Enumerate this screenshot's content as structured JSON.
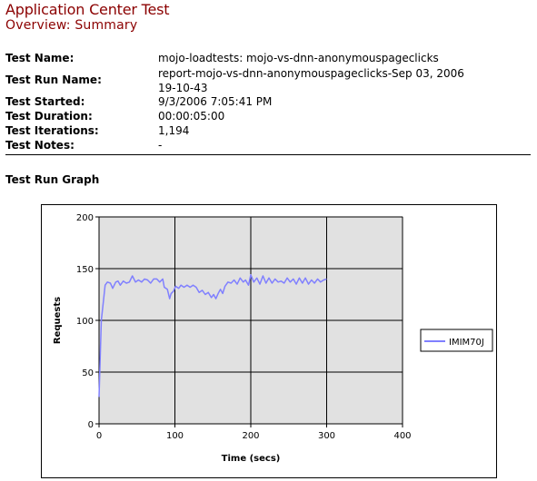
{
  "header": {
    "title": "Application Center Test",
    "subtitle": "Overview: Summary"
  },
  "summary": [
    {
      "label": "Test Name:",
      "value": "mojo-loadtests: mojo-vs-dnn-anonymouspageclicks"
    },
    {
      "label": "Test Run Name:",
      "value": "report-mojo-vs-dnn-anonymouspageclicks-Sep 03, 2006",
      "value2": "19-10-43"
    },
    {
      "label": "Test Started:",
      "value": "9/3/2006 7:05:41 PM"
    },
    {
      "label": "Test Duration:",
      "value": "00:00:05:00"
    },
    {
      "label": "Test Iterations:",
      "value": "1,194"
    },
    {
      "label": "Test Notes:",
      "value": "-"
    }
  ],
  "graph_section": {
    "title": "Test Run Graph"
  },
  "colors": {
    "title": "#8b0000",
    "plot_bg": "#e1e1e1",
    "series": "#8080ff"
  },
  "chart_data": {
    "type": "line",
    "xlabel": "Time (secs)",
    "ylabel": "Requests",
    "xlim": [
      0,
      400
    ],
    "ylim": [
      0,
      200
    ],
    "xticks": [
      "0",
      "100",
      "200",
      "300",
      "400"
    ],
    "yticks": [
      "0",
      "50",
      "100",
      "150",
      "200"
    ],
    "grid": true,
    "legend_position": "right",
    "series": [
      {
        "name": "IMIM70J",
        "color": "#8080ff",
        "points": [
          [
            0,
            26
          ],
          [
            3,
            100
          ],
          [
            6,
            120
          ],
          [
            8,
            134
          ],
          [
            11,
            137
          ],
          [
            15,
            136
          ],
          [
            18,
            131
          ],
          [
            22,
            137
          ],
          [
            25,
            138
          ],
          [
            28,
            134
          ],
          [
            32,
            138
          ],
          [
            36,
            136
          ],
          [
            40,
            137
          ],
          [
            44,
            143
          ],
          [
            48,
            137
          ],
          [
            52,
            139
          ],
          [
            56,
            137
          ],
          [
            60,
            140
          ],
          [
            64,
            139
          ],
          [
            68,
            136
          ],
          [
            72,
            140
          ],
          [
            76,
            140
          ],
          [
            80,
            137
          ],
          [
            84,
            140
          ],
          [
            86,
            132
          ],
          [
            90,
            130
          ],
          [
            93,
            121
          ],
          [
            95,
            126
          ],
          [
            98,
            128
          ],
          [
            101,
            133
          ],
          [
            105,
            131
          ],
          [
            108,
            134
          ],
          [
            112,
            132
          ],
          [
            116,
            134
          ],
          [
            120,
            132
          ],
          [
            124,
            134
          ],
          [
            128,
            132
          ],
          [
            132,
            127
          ],
          [
            136,
            129
          ],
          [
            140,
            125
          ],
          [
            144,
            127
          ],
          [
            148,
            122
          ],
          [
            151,
            125
          ],
          [
            154,
            121
          ],
          [
            157,
            126
          ],
          [
            160,
            130
          ],
          [
            163,
            126
          ],
          [
            166,
            133
          ],
          [
            170,
            137
          ],
          [
            174,
            136
          ],
          [
            178,
            139
          ],
          [
            182,
            135
          ],
          [
            186,
            141
          ],
          [
            190,
            137
          ],
          [
            193,
            139
          ],
          [
            197,
            134
          ],
          [
            200,
            144
          ],
          [
            204,
            137
          ],
          [
            208,
            141
          ],
          [
            212,
            135
          ],
          [
            216,
            143
          ],
          [
            220,
            136
          ],
          [
            224,
            141
          ],
          [
            228,
            136
          ],
          [
            232,
            140
          ],
          [
            236,
            137
          ],
          [
            240,
            138
          ],
          [
            244,
            136
          ],
          [
            248,
            141
          ],
          [
            252,
            137
          ],
          [
            256,
            140
          ],
          [
            260,
            135
          ],
          [
            264,
            141
          ],
          [
            268,
            136
          ],
          [
            272,
            141
          ],
          [
            276,
            135
          ],
          [
            280,
            139
          ],
          [
            284,
            136
          ],
          [
            288,
            140
          ],
          [
            292,
            137
          ],
          [
            296,
            139
          ],
          [
            300,
            140
          ]
        ]
      }
    ]
  }
}
